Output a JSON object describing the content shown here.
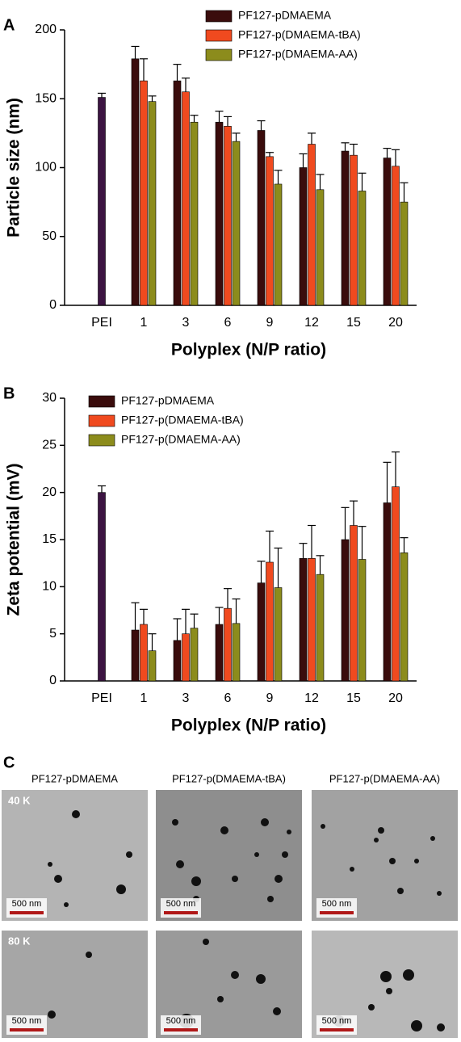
{
  "chart_data": [
    {
      "type": "bar",
      "panel": "A",
      "ylabel": "Particle size (nm)",
      "xlabel": "Polyplex (N/P ratio)",
      "categories": [
        "PEI",
        "1",
        "3",
        "6",
        "9",
        "12",
        "15",
        "20"
      ],
      "ylim": [
        0,
        200
      ],
      "yticks": [
        0,
        50,
        100,
        150,
        200
      ],
      "legend": "upper center",
      "series": [
        {
          "color": "#3c1442",
          "values": [
            151,
            null,
            null,
            null,
            null,
            null,
            null,
            null
          ],
          "errors": [
            3,
            null,
            null,
            null,
            null,
            null,
            null,
            null
          ]
        },
        {
          "name": "PF127-pDMAEMA",
          "color": "#3a0c0c",
          "values": [
            null,
            179,
            163,
            133,
            127,
            100,
            112,
            107
          ],
          "errors": [
            null,
            9,
            12,
            8,
            7,
            10,
            6,
            7
          ]
        },
        {
          "name": "PF127-p(DMAEMA-tBA)",
          "color": "#f04a1f",
          "values": [
            null,
            163,
            155,
            130,
            108,
            117,
            109,
            101
          ],
          "errors": [
            null,
            16,
            10,
            7,
            3,
            8,
            8,
            12
          ]
        },
        {
          "name": "PF127-p(DMAEMA-AA)",
          "color": "#8c8c1c",
          "values": [
            null,
            148,
            133,
            119,
            88,
            84,
            83,
            75
          ],
          "errors": [
            null,
            4,
            5,
            6,
            10,
            11,
            13,
            14
          ]
        }
      ]
    },
    {
      "type": "bar",
      "panel": "B",
      "ylabel": "Zeta potential (mV)",
      "xlabel": "Polyplex (N/P ratio)",
      "categories": [
        "PEI",
        "1",
        "3",
        "6",
        "9",
        "12",
        "15",
        "20"
      ],
      "ylim": [
        0,
        30
      ],
      "yticks": [
        0,
        5,
        10,
        15,
        20,
        25,
        30
      ],
      "legend": "upper left",
      "series": [
        {
          "color": "#3c1442",
          "values": [
            20,
            null,
            null,
            null,
            null,
            null,
            null,
            null
          ],
          "errors": [
            0.7,
            null,
            null,
            null,
            null,
            null,
            null,
            null
          ]
        },
        {
          "name": "PF127-pDMAEMA",
          "color": "#3a0c0c",
          "values": [
            null,
            5.4,
            4.3,
            6.0,
            10.4,
            13.0,
            15.0,
            18.9
          ],
          "errors": [
            null,
            2.9,
            2.3,
            1.8,
            2.3,
            1.6,
            3.4,
            4.3
          ]
        },
        {
          "name": "PF127-p(DMAEMA-tBA)",
          "color": "#f04a1f",
          "values": [
            null,
            6.0,
            5.0,
            7.7,
            12.6,
            13.0,
            16.5,
            20.6
          ],
          "errors": [
            null,
            1.6,
            2.6,
            2.1,
            3.3,
            3.5,
            2.6,
            3.7
          ]
        },
        {
          "name": "PF127-p(DMAEMA-AA)",
          "color": "#8c8c1c",
          "values": [
            null,
            3.2,
            5.6,
            6.1,
            9.9,
            11.3,
            12.9,
            13.6
          ],
          "errors": [
            null,
            1.8,
            1.5,
            2.6,
            4.2,
            2.0,
            3.5,
            1.6
          ]
        }
      ]
    }
  ],
  "panel_c": {
    "panel": "C",
    "columns": [
      "PF127-pDMAEMA",
      "PF127-p(DMAEMA-tBA)",
      "PF127-p(DMAEMA-AA)"
    ],
    "rows": [
      "40 K",
      "80 K"
    ],
    "scale_bar": "500 nm"
  }
}
